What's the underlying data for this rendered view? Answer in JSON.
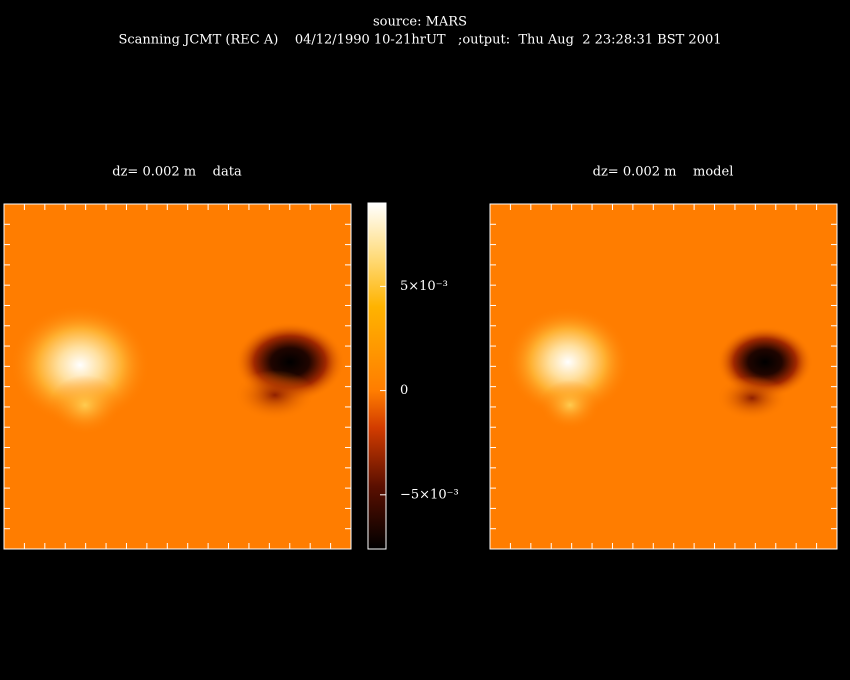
{
  "header": {
    "title": "source: MARS",
    "subtitle": "Scanning JCMT (REC A)    04/12/1990 10-21hrUT   ;output:  Thu Aug  2 23:28:31 BST 2001"
  },
  "panels": [
    {
      "label": "dz= 0.002 m    data"
    },
    {
      "label": "dz= 0.002 m    model"
    }
  ],
  "colorbar": {
    "lim": [
      -0.0076,
      0.009
    ],
    "ticks": [
      {
        "value": 0.005,
        "label": "5×10⁻³"
      },
      0,
      {
        "value": -0.005,
        "label": "−5×10⁻³"
      }
    ]
  }
}
